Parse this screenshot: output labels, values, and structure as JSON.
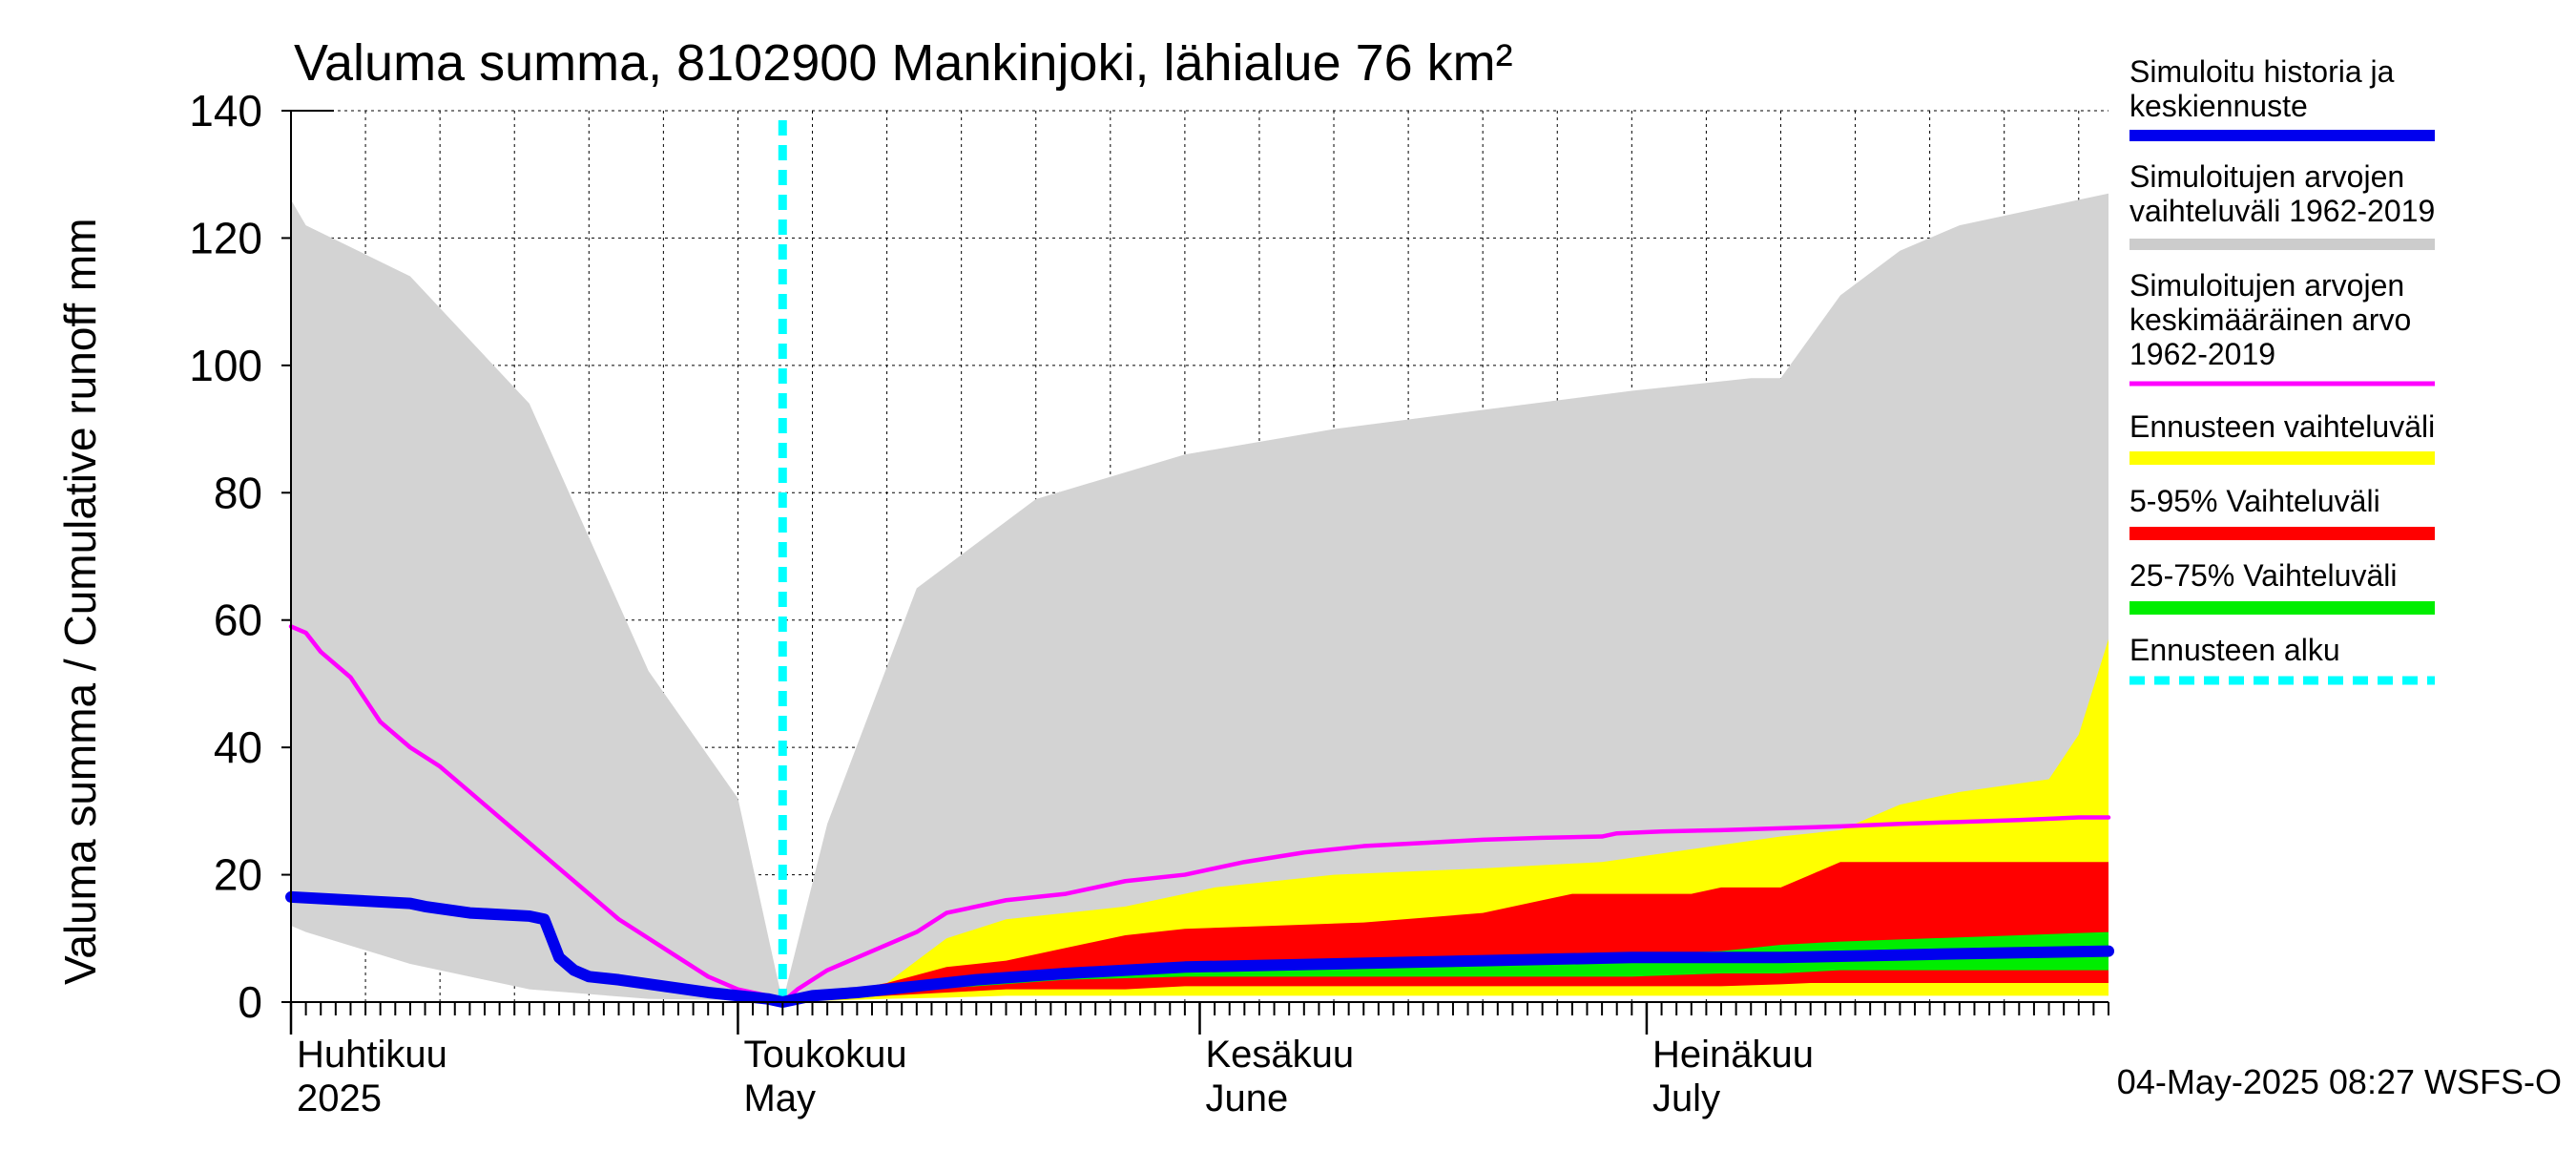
{
  "chart_data": {
    "type": "area",
    "title": "Valuma summa, 8102900 Mankinjoki, lähialue 76 km²",
    "ylabel": "Valuma summa / Cumulative runoff    mm",
    "ylim": [
      0,
      140
    ],
    "yticks": [
      0,
      20,
      40,
      60,
      80,
      100,
      120,
      140
    ],
    "grid": true,
    "legend_position": "right",
    "x_start_day": 0,
    "x_end_day": 122,
    "forecast_start_day": 33,
    "month_labels": [
      {
        "fi": "Huhtikuu",
        "en": "2025",
        "day": 0
      },
      {
        "fi": "Toukokuu",
        "en": "May",
        "day": 30
      },
      {
        "fi": "Kesäkuu",
        "en": "June",
        "day": 61
      },
      {
        "fi": "Heinäkuu",
        "en": "July",
        "day": 91
      }
    ],
    "legend": [
      {
        "label": "Simuloitu historia ja keskiennuste",
        "color": "#0000ee",
        "style": "solid"
      },
      {
        "label": "Simuloitujen arvojen vaihteluväli 1962-2019",
        "color": "#cccccc",
        "style": "solid"
      },
      {
        "label": "Simuloitujen arvojen keskimääräinen arvo 1962-2019",
        "color": "#ff00ff",
        "style": "thin"
      },
      {
        "label": "Ennusteen vaihteluväli",
        "color": "#ffff00",
        "style": "solid"
      },
      {
        "label": "5-95% Vaihteluväli",
        "color": "#ff0000",
        "style": "solid"
      },
      {
        "label": "25-75% Vaihteluväli",
        "color": "#00ee00",
        "style": "solid"
      },
      {
        "label": "Ennusteen alku",
        "color": "#00ffff",
        "style": "dashed"
      }
    ],
    "series": [
      {
        "name": "Simuloitujen arvojen vaihteluväli 1962-2019",
        "kind": "band",
        "color": "#d3d3d3",
        "x": [
          0,
          1,
          8,
          16,
          24,
          30,
          33,
          36,
          42,
          50,
          60,
          70,
          80,
          90,
          98,
          100,
          104,
          108,
          112,
          116,
          120,
          122
        ],
        "upper": [
          126,
          122,
          114,
          94,
          52,
          32,
          0,
          28,
          65,
          79,
          86,
          90,
          93,
          96,
          98,
          98,
          111,
          118,
          122,
          124,
          126,
          127
        ],
        "lower": [
          12,
          11,
          6,
          2,
          0.5,
          0.3,
          0,
          0.5,
          1,
          1.5,
          2,
          2.5,
          3,
          3.5,
          4,
          4,
          4.5,
          5,
          5,
          5.5,
          6,
          6
        ]
      },
      {
        "name": "Ennusteen vaihteluväli",
        "kind": "band",
        "color": "#ffff00",
        "x": [
          33,
          40,
          44,
          48,
          56,
          62,
          70,
          80,
          88,
          94,
          100,
          104,
          108,
          112,
          118,
          120,
          122
        ],
        "upper": [
          0,
          3,
          10,
          13,
          15,
          18,
          20,
          21,
          22,
          24,
          26,
          27,
          31,
          33,
          35,
          42,
          57
        ],
        "lower": [
          0,
          0.5,
          0.7,
          1,
          1,
          1,
          1,
          1,
          1,
          1,
          1,
          1,
          1,
          1,
          1,
          1,
          1
        ]
      },
      {
        "name": "5-95% Vaihteluväli",
        "kind": "band",
        "color": "#ff0000",
        "x": [
          33,
          40,
          44,
          48,
          52,
          56,
          60,
          66,
          72,
          80,
          84,
          86,
          88,
          94,
          96,
          100,
          102,
          104,
          122
        ],
        "upper": [
          0,
          3,
          5.5,
          6.5,
          8.5,
          10.5,
          11.5,
          12,
          12.5,
          14,
          16,
          17,
          17,
          17,
          18,
          18,
          20,
          22,
          22
        ],
        "lower": [
          0,
          1,
          1.5,
          2,
          2,
          2,
          2.5,
          2.5,
          2.5,
          2.5,
          2.5,
          2.5,
          2.5,
          2.5,
          2.5,
          2.8,
          3,
          3,
          3
        ]
      },
      {
        "name": "25-75% Vaihteluväli",
        "kind": "band",
        "color": "#00ee00",
        "x": [
          33,
          40,
          46,
          52,
          60,
          70,
          80,
          90,
          96,
          100,
          104,
          110,
          116,
          122
        ],
        "upper": [
          0,
          2,
          4,
          5,
          6,
          6.5,
          7,
          7.5,
          8,
          9,
          9.5,
          10,
          10.5,
          11
        ],
        "lower": [
          0,
          1.5,
          2.5,
          3.5,
          4,
          4,
          4,
          4,
          4.5,
          4.5,
          5,
          5,
          5,
          5
        ]
      },
      {
        "name": "Simuloitujen arvojen keskimääräinen arvo 1962-2019",
        "kind": "line",
        "color": "#ff00ff",
        "x": [
          0,
          1,
          2,
          4,
          6,
          8,
          10,
          12,
          14,
          16,
          18,
          20,
          22,
          24,
          26,
          28,
          30,
          32,
          33,
          34,
          36,
          38,
          40,
          42,
          44,
          48,
          52,
          56,
          60,
          64,
          68,
          72,
          76,
          80,
          84,
          88,
          89,
          92,
          96,
          100,
          104,
          108,
          112,
          116,
          120,
          122
        ],
        "values": [
          59,
          58,
          55,
          51,
          44,
          40,
          37,
          33,
          29,
          25,
          21,
          17,
          13,
          10,
          7,
          4,
          2,
          1,
          0,
          2,
          5,
          7,
          9,
          11,
          14,
          16,
          17,
          19,
          20,
          22,
          23.5,
          24.5,
          25,
          25.5,
          25.8,
          26,
          26.5,
          26.8,
          27,
          27.3,
          27.6,
          28,
          28.3,
          28.6,
          29,
          29
        ]
      },
      {
        "name": "Simuloitu historia ja keskiennuste",
        "kind": "line",
        "color": "#0000ee",
        "x": [
          0,
          4,
          8,
          9,
          12,
          16,
          17,
          18,
          19,
          20,
          22,
          25,
          28,
          30,
          32,
          33,
          35,
          38,
          42,
          46,
          52,
          60,
          70,
          80,
          90,
          100,
          110,
          122
        ],
        "values": [
          16.5,
          16,
          15.5,
          15,
          14,
          13.5,
          13,
          7,
          5,
          4,
          3.5,
          2.5,
          1.5,
          1,
          0.5,
          0,
          1,
          1.5,
          2.5,
          3.5,
          4.5,
          5.5,
          6,
          6.5,
          7,
          7,
          7.5,
          8
        ]
      }
    ]
  },
  "footer": {
    "timestamp": "04-May-2025 08:27 WSFS-O"
  }
}
